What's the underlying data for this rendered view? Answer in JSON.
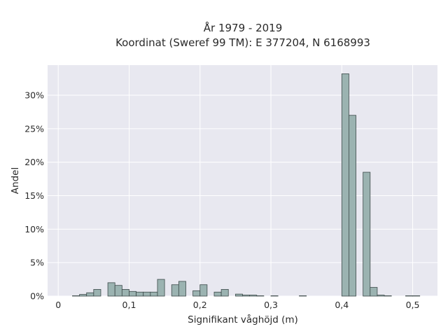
{
  "chart_data": {
    "type": "bar",
    "title_line1": "År 1979 - 2019",
    "title_line2": "Koordinat (Sweref 99 TM): E 377204, N 6168993",
    "xlabel": "Signifikant våghöjd (m)",
    "ylabel": "Andel",
    "xlim": [
      -0.015,
      0.535
    ],
    "ylim": [
      0,
      34.5
    ],
    "bin_width": 0.01,
    "grid": true,
    "background": "#e8e8f0",
    "bar_color": "#9bb3b1",
    "bar_edge_color": "#3d4a4a",
    "x_ticks": [
      {
        "value": 0,
        "label": "0"
      },
      {
        "value": 0.1,
        "label": "0,1"
      },
      {
        "value": 0.2,
        "label": "0,2"
      },
      {
        "value": 0.3,
        "label": "0,3"
      },
      {
        "value": 0.4,
        "label": "0,4"
      },
      {
        "value": 0.5,
        "label": "0,5"
      }
    ],
    "y_ticks": [
      {
        "value": 0,
        "label": "0%"
      },
      {
        "value": 5,
        "label": "5%"
      },
      {
        "value": 10,
        "label": "10%"
      },
      {
        "value": 15,
        "label": "15%"
      },
      {
        "value": 20,
        "label": "20%"
      },
      {
        "value": 25,
        "label": "25%"
      },
      {
        "value": 30,
        "label": "30%"
      }
    ],
    "bins": [
      {
        "x": 0.02,
        "value": 0.05
      },
      {
        "x": 0.03,
        "value": 0.25
      },
      {
        "x": 0.04,
        "value": 0.5
      },
      {
        "x": 0.05,
        "value": 1.0
      },
      {
        "x": 0.07,
        "value": 2.0
      },
      {
        "x": 0.08,
        "value": 1.6
      },
      {
        "x": 0.09,
        "value": 1.0
      },
      {
        "x": 0.1,
        "value": 0.7
      },
      {
        "x": 0.11,
        "value": 0.6
      },
      {
        "x": 0.12,
        "value": 0.6
      },
      {
        "x": 0.13,
        "value": 0.6
      },
      {
        "x": 0.14,
        "value": 2.5
      },
      {
        "x": 0.16,
        "value": 1.7
      },
      {
        "x": 0.17,
        "value": 2.2
      },
      {
        "x": 0.19,
        "value": 0.8
      },
      {
        "x": 0.2,
        "value": 1.7
      },
      {
        "x": 0.22,
        "value": 0.6
      },
      {
        "x": 0.23,
        "value": 1.0
      },
      {
        "x": 0.25,
        "value": 0.3
      },
      {
        "x": 0.26,
        "value": 0.15
      },
      {
        "x": 0.27,
        "value": 0.15
      },
      {
        "x": 0.28,
        "value": 0.05
      },
      {
        "x": 0.3,
        "value": 0.05
      },
      {
        "x": 0.34,
        "value": 0.05
      },
      {
        "x": 0.4,
        "value": 33.2
      },
      {
        "x": 0.41,
        "value": 27.0
      },
      {
        "x": 0.43,
        "value": 18.5
      },
      {
        "x": 0.44,
        "value": 1.3
      },
      {
        "x": 0.45,
        "value": 0.15
      },
      {
        "x": 0.46,
        "value": 0.05
      },
      {
        "x": 0.49,
        "value": 0.05
      },
      {
        "x": 0.5,
        "value": 0.05
      }
    ]
  }
}
